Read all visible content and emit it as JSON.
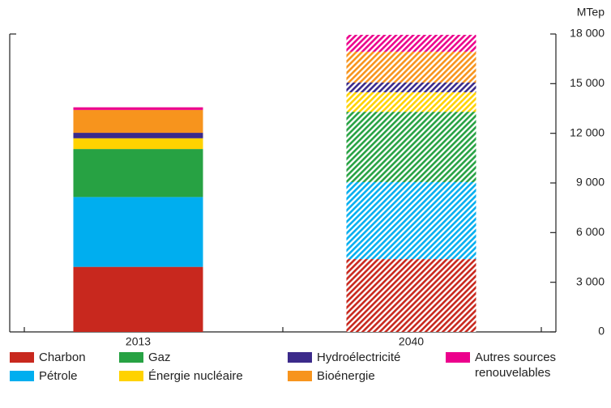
{
  "chart_data": {
    "type": "stacked_bar",
    "y_label": "MTep",
    "categories": [
      "2013",
      "2040"
    ],
    "hatch": [
      false,
      true
    ],
    "series": [
      {
        "name": "Charbon",
        "color": "#c8281e",
        "values": [
          3930,
          4400
        ]
      },
      {
        "name": "Pétrole",
        "color": "#00aeef",
        "values": [
          4220,
          4650
        ]
      },
      {
        "name": "Gaz",
        "color": "#27a243",
        "values": [
          2900,
          4250
        ]
      },
      {
        "name": "Énergie nucléaire",
        "color": "#ffd200",
        "values": [
          650,
          1180
        ]
      },
      {
        "name": "Hydroélectricité",
        "color": "#3b2a8a",
        "values": [
          330,
          590
        ]
      },
      {
        "name": "Bioénergie",
        "color": "#f7941d",
        "values": [
          1380,
          1860
        ]
      },
      {
        "name": "Autres sources renouvelables",
        "color": "#ec008c",
        "values": [
          160,
          1020
        ]
      }
    ],
    "ylim": [
      0,
      18000
    ],
    "yticks": [
      0,
      {
        "value": 3000,
        "label": "3 000"
      },
      {
        "value": 6000,
        "label": "6 000"
      },
      {
        "value": 9000,
        "label": "9 000"
      },
      {
        "value": 12000,
        "label": "12 000"
      },
      {
        "value": 15000,
        "label": "15 000"
      },
      {
        "value": 18000,
        "label": "18 000"
      }
    ],
    "y_axis_side": "right"
  }
}
